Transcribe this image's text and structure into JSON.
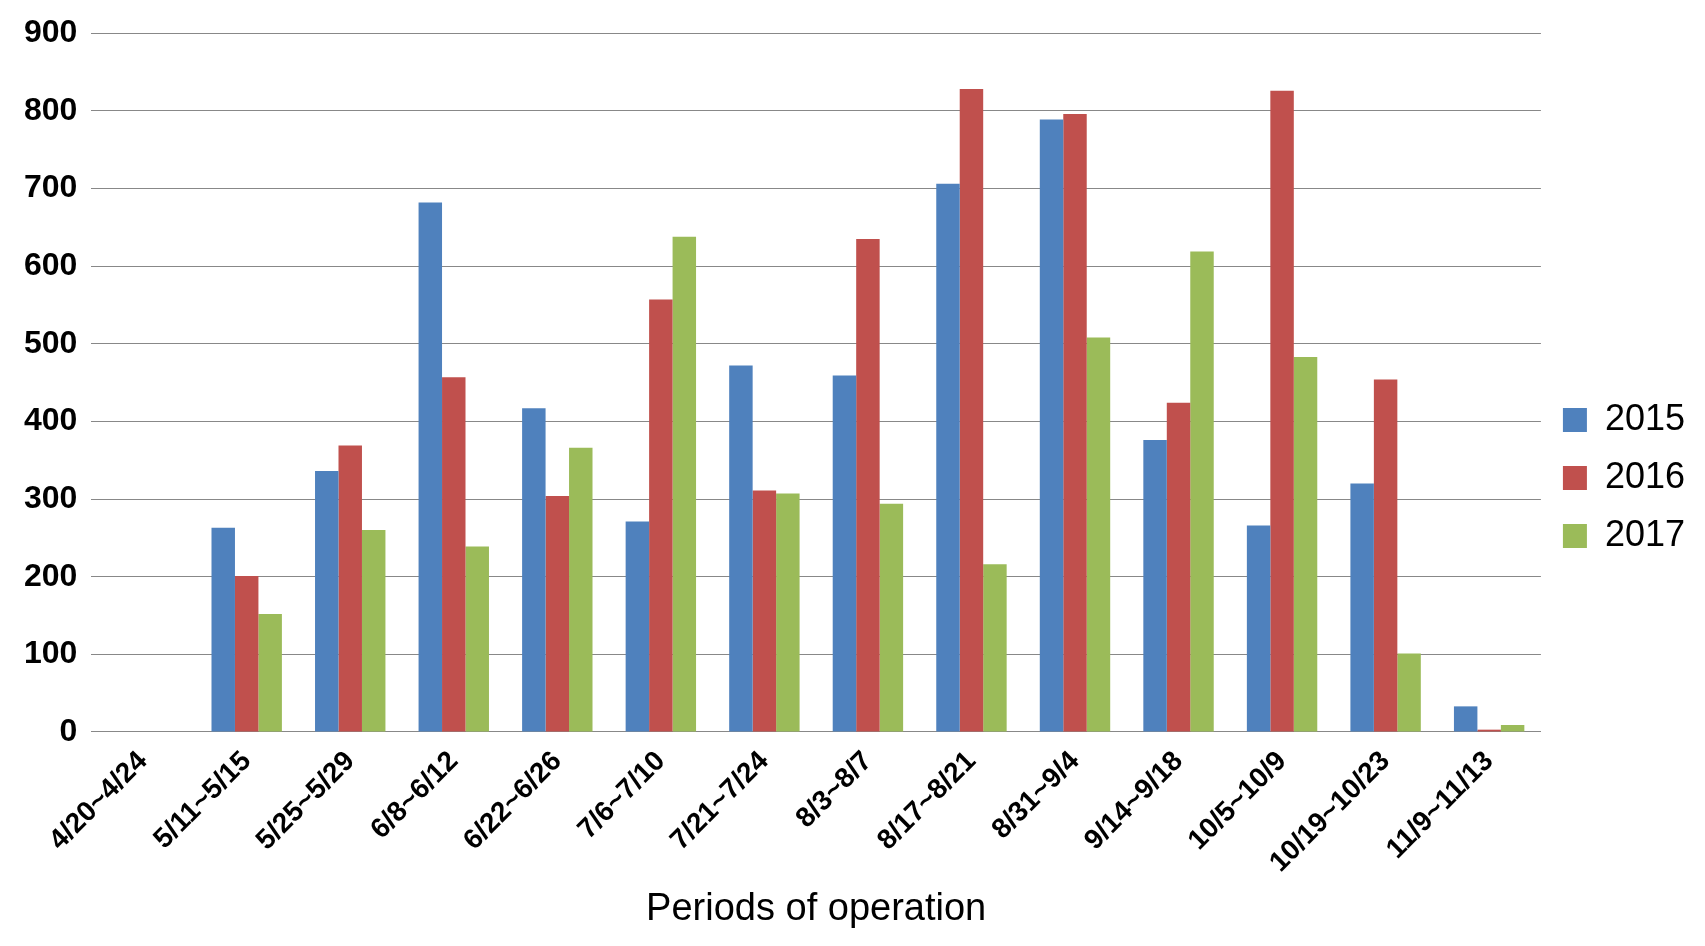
{
  "chart_data": {
    "type": "bar",
    "xlabel": "Periods of operation",
    "categories": [
      "4/20~4/24",
      "5/11~5/15",
      "5/25~5/29",
      "6/8~6/12",
      "6/22~6/26",
      "7/6~7/10",
      "7/21~7/24",
      "8/3~8/7",
      "8/17~8/21",
      "8/31~9/4",
      "9/14~9/18",
      "10/5~10/9",
      "10/19~10/23",
      "11/9~11/13"
    ],
    "series": [
      {
        "name": "2015",
        "color": "#4f81bd",
        "values": [
          0,
          263,
          336,
          682,
          417,
          271,
          472,
          459,
          706,
          789,
          376,
          266,
          320,
          33
        ]
      },
      {
        "name": "2016",
        "color": "#c0504d",
        "values": [
          0,
          201,
          369,
          457,
          304,
          557,
          311,
          635,
          828,
          796,
          424,
          826,
          454,
          3
        ]
      },
      {
        "name": "2017",
        "color": "#9bbb59",
        "values": [
          0,
          152,
          260,
          239,
          366,
          638,
          307,
          294,
          216,
          508,
          619,
          483,
          101,
          9
        ]
      }
    ],
    "ylim": [
      0,
      900
    ],
    "yticks": [
      0,
      100,
      200,
      300,
      400,
      500,
      600,
      700,
      800,
      900
    ],
    "grid": "y",
    "legend": "right"
  }
}
